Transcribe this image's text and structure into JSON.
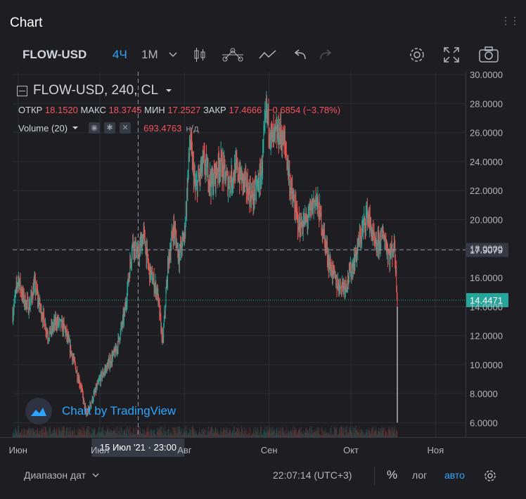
{
  "panel": {
    "title": "Chart"
  },
  "toolbar": {
    "symbol": "FLOW-USD",
    "interval_active": "4Ч",
    "interval_other": "1М",
    "icons": [
      "chevron-down-icon",
      "candles-icon",
      "indicators-icon",
      "line-tool-icon",
      "undo-icon",
      "redo-icon",
      "gear-icon",
      "fullscreen-icon",
      "camera-icon"
    ]
  },
  "legend": {
    "title": "FLOW-USD, 240, CL",
    "open_label": "ОТКР",
    "open": "18.1520",
    "high_label": "МАКС",
    "high": "18.3745",
    "low_label": "МИН",
    "low": "17.2527",
    "close_label": "ЗАКР",
    "close": "17.4666",
    "change": "−0.6854 (−3.78%)",
    "volume_label": "Volume (20)",
    "volume_value": "693.4763",
    "volume_suffix": "н/д"
  },
  "watermark": {
    "text": "Chart by TradingView"
  },
  "crosshair": {
    "x_label": "15 Июл '21 · 23:00",
    "y_label": "17.9079"
  },
  "last_price": {
    "value": "14.4471"
  },
  "bottom": {
    "date_range": "Диапазон дат",
    "time": "22:07:14 (UTC+3)",
    "percent": "%",
    "log": "лог",
    "auto": "авто"
  },
  "colors": {
    "up": "#26a69a",
    "down": "#ef5350",
    "accent": "#2ca6ff",
    "grid": "#2a2e39",
    "bg": "#1e1e22",
    "last_price": "#26a69a"
  },
  "chart_data": {
    "type": "candlestick",
    "symbol": "FLOW-USD",
    "interval": "240",
    "y_ticks": [
      "30.0000",
      "28.0000",
      "26.0000",
      "24.0000",
      "22.0000",
      "20.0000",
      "18.0000",
      "16.0000",
      "14.0000",
      "12.0000",
      "10.0000",
      "8.0000",
      "6.0000"
    ],
    "ylim": [
      5,
      30.2
    ],
    "x_ticks": [
      "Июн",
      "Июл",
      "Авг",
      "Сен",
      "Окт",
      "Ноя"
    ],
    "x_ticks_visible": [
      "Июн",
      "Авг",
      "Сен",
      "Окт",
      "Ноя"
    ],
    "x_range": [
      "2021-05-30",
      "2021-11-12"
    ],
    "x_tick_dates": [
      "2021-06-01",
      "2021-07-01",
      "2021-08-01",
      "2021-09-01",
      "2021-10-01",
      "2021-11-01"
    ],
    "price_path": [
      [
        "2021-05-30",
        13.5
      ],
      [
        "2021-06-01",
        16.0
      ],
      [
        "2021-06-03",
        14.5
      ],
      [
        "2021-06-05",
        14.0
      ],
      [
        "2021-06-07",
        15.5
      ],
      [
        "2021-06-09",
        14.0
      ],
      [
        "2021-06-12",
        12.0
      ],
      [
        "2021-06-15",
        13.0
      ],
      [
        "2021-06-18",
        12.5
      ],
      [
        "2021-06-21",
        10.5
      ],
      [
        "2021-06-24",
        8.5
      ],
      [
        "2021-06-26",
        6.5
      ],
      [
        "2021-06-28",
        7.5
      ],
      [
        "2021-07-01",
        9.0
      ],
      [
        "2021-07-04",
        10.0
      ],
      [
        "2021-07-07",
        11.0
      ],
      [
        "2021-07-10",
        13.5
      ],
      [
        "2021-07-13",
        18.5
      ],
      [
        "2021-07-15",
        17.5
      ],
      [
        "2021-07-17",
        19.0
      ],
      [
        "2021-07-19",
        16.5
      ],
      [
        "2021-07-22",
        15.0
      ],
      [
        "2021-07-24",
        11.5
      ],
      [
        "2021-07-26",
        17.0
      ],
      [
        "2021-07-28",
        19.5
      ],
      [
        "2021-07-30",
        17.5
      ],
      [
        "2021-08-01",
        19.0
      ],
      [
        "2021-08-03",
        25.5
      ],
      [
        "2021-08-05",
        22.0
      ],
      [
        "2021-08-08",
        24.0
      ],
      [
        "2021-08-11",
        22.5
      ],
      [
        "2021-08-14",
        24.0
      ],
      [
        "2021-08-17",
        22.5
      ],
      [
        "2021-08-20",
        23.5
      ],
      [
        "2021-08-23",
        22.5
      ],
      [
        "2021-08-26",
        21.5
      ],
      [
        "2021-08-29",
        23.0
      ],
      [
        "2021-08-31",
        27.5
      ],
      [
        "2021-09-02",
        25.5
      ],
      [
        "2021-09-05",
        26.0
      ],
      [
        "2021-09-07",
        25.0
      ],
      [
        "2021-09-09",
        22.0
      ],
      [
        "2021-09-12",
        19.5
      ],
      [
        "2021-09-15",
        20.0
      ],
      [
        "2021-09-18",
        21.5
      ],
      [
        "2021-09-20",
        20.0
      ],
      [
        "2021-09-23",
        17.0
      ],
      [
        "2021-09-26",
        15.5
      ],
      [
        "2021-09-29",
        15.5
      ],
      [
        "2021-10-02",
        17.0
      ],
      [
        "2021-10-04",
        18.5
      ],
      [
        "2021-10-07",
        20.5
      ],
      [
        "2021-10-10",
        18.0
      ],
      [
        "2021-10-13",
        19.0
      ],
      [
        "2021-10-15",
        17.5
      ],
      [
        "2021-10-17",
        18.2
      ],
      [
        "2021-10-18",
        14.4471
      ]
    ],
    "spike_low": 6.0
  }
}
